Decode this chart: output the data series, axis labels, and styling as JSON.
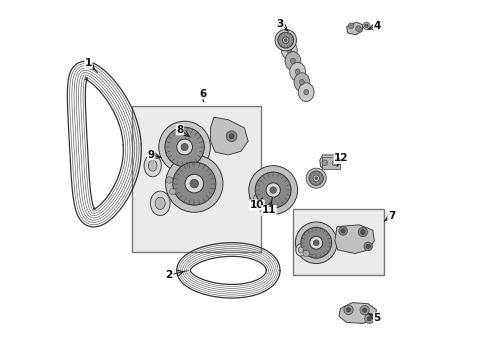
{
  "background_color": "#ffffff",
  "figure_width": 4.89,
  "figure_height": 3.6,
  "dpi": 100,
  "belt1_color": "#555555",
  "belt2_color": "#555555",
  "box_fill": "#e8e8e8",
  "box_edge": "#888888",
  "part_light": "#d8d8d8",
  "part_mid": "#aaaaaa",
  "part_dark": "#666666",
  "label_positions": {
    "1": [
      0.065,
      0.825,
      0.09,
      0.8
    ],
    "2": [
      0.29,
      0.235,
      0.34,
      0.247
    ],
    "3": [
      0.6,
      0.935,
      0.622,
      0.915
    ],
    "4": [
      0.87,
      0.93,
      0.845,
      0.92
    ],
    "5": [
      0.87,
      0.115,
      0.845,
      0.128
    ],
    "6": [
      0.385,
      0.74,
      0.385,
      0.72
    ],
    "7": [
      0.91,
      0.4,
      0.89,
      0.385
    ],
    "8": [
      0.32,
      0.64,
      0.348,
      0.62
    ],
    "9": [
      0.24,
      0.57,
      0.268,
      0.562
    ],
    "10": [
      0.535,
      0.43,
      0.55,
      0.45
    ],
    "11": [
      0.568,
      0.415,
      0.578,
      0.45
    ],
    "12": [
      0.77,
      0.56,
      0.758,
      0.538
    ]
  }
}
